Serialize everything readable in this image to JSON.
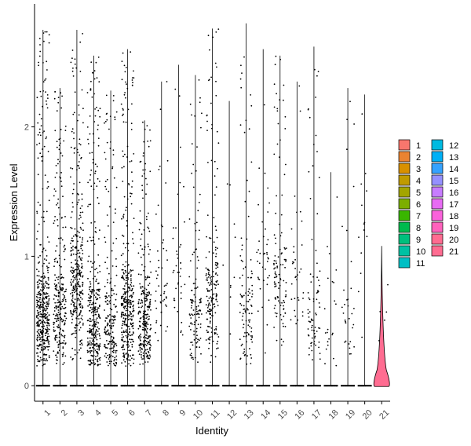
{
  "chart_data": {
    "type": "violin",
    "title": "",
    "xlabel": "Identity",
    "ylabel": "Expression Level",
    "ylim": [
      -0.12,
      2.95
    ],
    "yticks": [
      0,
      1,
      2
    ],
    "categories": [
      "1",
      "2",
      "3",
      "4",
      "5",
      "6",
      "7",
      "8",
      "9",
      "10",
      "11",
      "12",
      "13",
      "14",
      "15",
      "16",
      "17",
      "18",
      "19",
      "20",
      "21"
    ],
    "colors": [
      "#F8766D",
      "#EA8331",
      "#D89000",
      "#C09B00",
      "#A3A500",
      "#7CAE00",
      "#39B600",
      "#00BB4E",
      "#00BF7D",
      "#00C1A3",
      "#00BFC4",
      "#00BAE0",
      "#00B0F6",
      "#35A2FF",
      "#9590FF",
      "#C77CFF",
      "#E76BF3",
      "#FA62DB",
      "#FF62BC",
      "#FF6C91",
      "#FF6C91"
    ],
    "series_max": [
      2.75,
      2.3,
      2.75,
      2.55,
      2.28,
      2.6,
      2.05,
      2.35,
      2.48,
      2.4,
      2.76,
      2.2,
      2.8,
      2.6,
      2.55,
      2.35,
      2.62,
      1.65,
      2.3,
      2.25,
      1.08
    ],
    "positive_points": [
      420,
      260,
      330,
      330,
      200,
      350,
      280,
      50,
      40,
      120,
      180,
      10,
      110,
      40,
      110,
      35,
      80,
      22,
      32,
      14,
      6
    ],
    "median_positive": [
      0.55,
      0.6,
      0.8,
      0.45,
      0.4,
      0.55,
      0.45,
      0.8,
      0.8,
      0.55,
      0.7,
      1.0,
      0.55,
      0.9,
      0.8,
      0.8,
      0.55,
      0.6,
      0.4,
      1.2,
      0.6
    ],
    "legend": {
      "position": "right",
      "entries": [
        "1",
        "2",
        "3",
        "4",
        "5",
        "6",
        "7",
        "8",
        "9",
        "10",
        "11",
        "12",
        "13",
        "14",
        "15",
        "16",
        "17",
        "18",
        "19",
        "20",
        "21"
      ]
    }
  }
}
